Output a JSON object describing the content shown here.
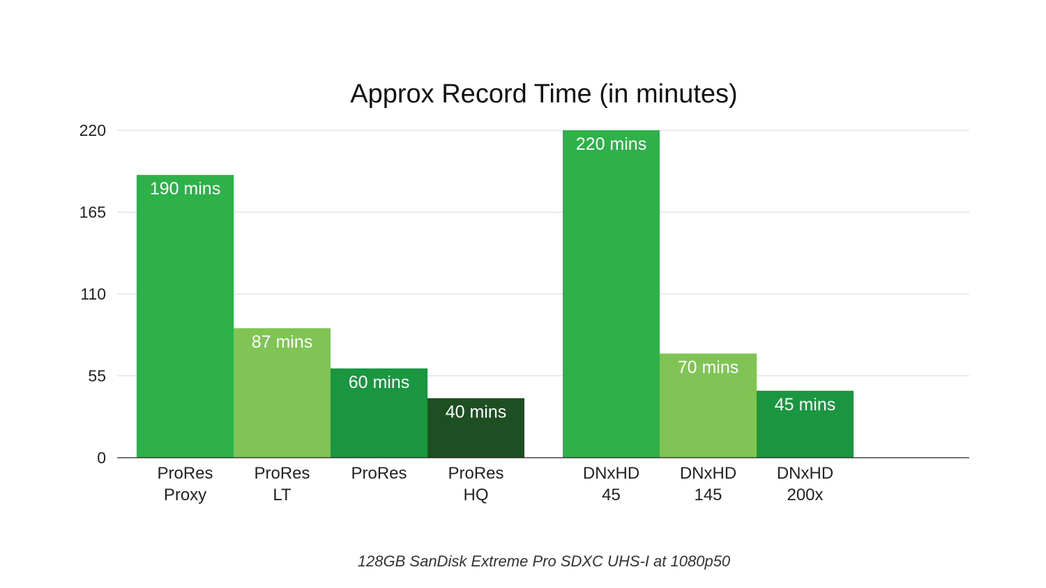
{
  "chart_data": {
    "type": "bar",
    "title": "Approx Record Time (in minutes)",
    "xlabel": "",
    "ylabel": "",
    "ylim": [
      0,
      220
    ],
    "yticks": [
      0,
      55,
      110,
      165,
      220
    ],
    "grid": true,
    "legend": "none",
    "groups": [
      {
        "bars": [
          {
            "label_lines": [
              "ProRes",
              "Proxy"
            ],
            "value": 190,
            "data_label": "190 mins",
            "color": "#2fb14a"
          },
          {
            "label_lines": [
              "ProRes",
              "LT"
            ],
            "value": 87,
            "data_label": "87 mins",
            "color": "#7fc454"
          },
          {
            "label_lines": [
              "ProRes"
            ],
            "value": 60,
            "data_label": "60 mins",
            "color": "#1a9641"
          },
          {
            "label_lines": [
              "ProRes",
              "HQ"
            ],
            "value": 40,
            "data_label": "40 mins",
            "color": "#1e4f22"
          }
        ]
      },
      {
        "bars": [
          {
            "label_lines": [
              "DNxHD",
              "45"
            ],
            "value": 220,
            "data_label": "220 mins",
            "color": "#2fb14a"
          },
          {
            "label_lines": [
              "DNxHD",
              "145"
            ],
            "value": 70,
            "data_label": "70 mins",
            "color": "#7fc454"
          },
          {
            "label_lines": [
              "DNxHD",
              "200x"
            ],
            "value": 45,
            "data_label": "45 mins",
            "color": "#1a9641"
          }
        ]
      }
    ]
  },
  "caption": "128GB SanDisk Extreme Pro SDXC UHS-I at 1080p50",
  "colors": {
    "grid": "#d8d8d8",
    "axis": "#222222"
  }
}
